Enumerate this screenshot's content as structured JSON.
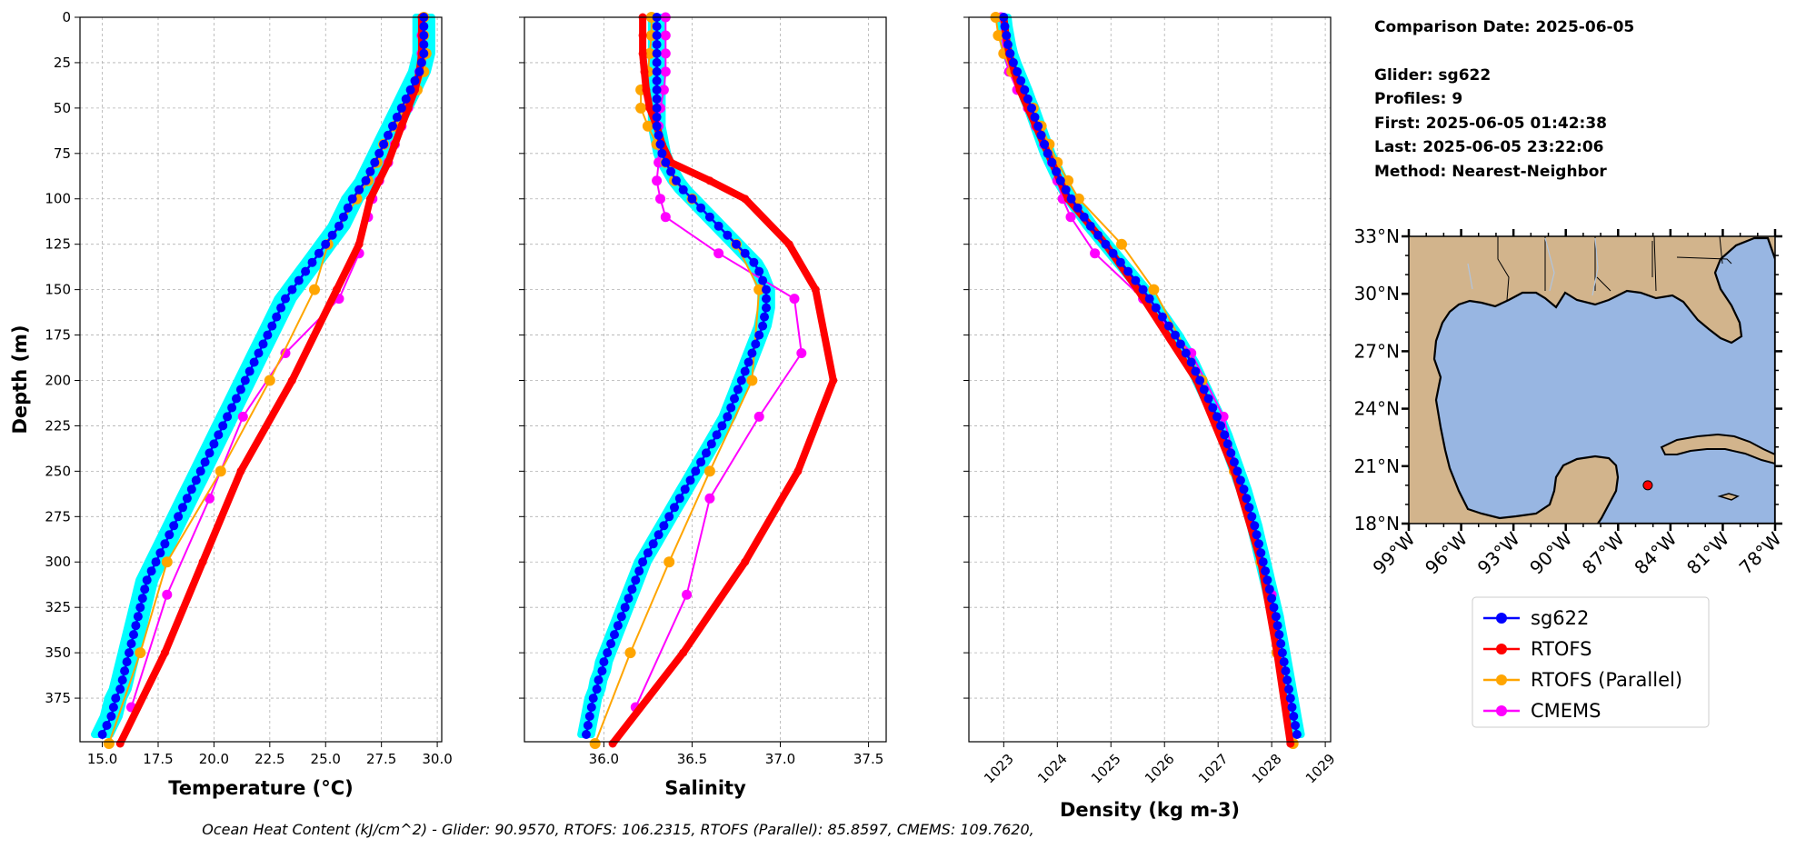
{
  "info": {
    "title": "Comparison Date: 2025-06-05",
    "glider": "Glider: sg622",
    "profiles": "Profiles: 9",
    "first": "First: 2025-06-05 01:42:38",
    "last": "Last: 2025-06-05 23:22:06",
    "method": "Method: Nearest-Neighbor"
  },
  "footer": "Ocean Heat Content (kJ/cm^2) - Glider: 90.9570,  RTOFS: 106.2315,  RTOFS (Parallel): 85.8597,  CMEMS: 109.7620,",
  "colors": {
    "glider": "#0000ff",
    "glider_spread": "#00ffff",
    "rtofs": "#ff0000",
    "rtofs_parallel": "#ffa500",
    "cmems": "#ff00ff",
    "land": "#d2b48c",
    "ocean": "#98b6e2"
  },
  "legend": [
    "sg622",
    "RTOFS",
    "RTOFS (Parallel)",
    "CMEMS"
  ],
  "chart_data": [
    {
      "type": "line",
      "xlabel": "Temperature (°C)",
      "ylabel": "Depth (m)",
      "xlim": [
        14,
        30.2
      ],
      "ylim": [
        399,
        0
      ],
      "xticks": [
        15.0,
        17.5,
        20.0,
        22.5,
        25.0,
        27.5,
        30.0
      ],
      "xtick_labels": [
        "15.0",
        "17.5",
        "20.0",
        "22.5",
        "25.0",
        "27.5",
        "30.0"
      ],
      "yticks": [
        0,
        25,
        50,
        75,
        100,
        125,
        150,
        175,
        200,
        225,
        250,
        275,
        300,
        325,
        350,
        375
      ],
      "yticks_labels": [
        "0",
        "25",
        "50",
        "75",
        "100",
        "125",
        "150",
        "175",
        "200",
        "225",
        "250",
        "275",
        "300",
        "325",
        "350",
        "375"
      ],
      "grid": true,
      "series": [
        {
          "name": "sg622",
          "depth": [
            0,
            5,
            10,
            15,
            20,
            25,
            30,
            35,
            40,
            45,
            50,
            55,
            60,
            65,
            70,
            75,
            80,
            85,
            90,
            95,
            100,
            105,
            110,
            115,
            120,
            125,
            130,
            135,
            140,
            145,
            150,
            155,
            160,
            165,
            170,
            175,
            180,
            185,
            190,
            195,
            200,
            205,
            210,
            215,
            220,
            225,
            230,
            235,
            240,
            245,
            250,
            255,
            260,
            265,
            270,
            275,
            280,
            285,
            290,
            295,
            300,
            305,
            310,
            315,
            320,
            325,
            330,
            335,
            340,
            345,
            350,
            355,
            360,
            365,
            370,
            375,
            380,
            385,
            390,
            395
          ],
          "values": [
            29.4,
            29.4,
            29.4,
            29.4,
            29.4,
            29.3,
            29.2,
            29.0,
            28.8,
            28.6,
            28.4,
            28.2,
            28.0,
            27.8,
            27.6,
            27.4,
            27.2,
            27.0,
            26.8,
            26.5,
            26.2,
            26.0,
            25.8,
            25.6,
            25.3,
            25.0,
            24.7,
            24.4,
            24.1,
            23.8,
            23.5,
            23.2,
            23.0,
            22.8,
            22.6,
            22.4,
            22.2,
            22.0,
            21.8,
            21.6,
            21.4,
            21.2,
            21.0,
            20.8,
            20.6,
            20.4,
            20.2,
            20.0,
            19.8,
            19.6,
            19.4,
            19.2,
            19.0,
            18.8,
            18.6,
            18.4,
            18.2,
            18.0,
            17.8,
            17.6,
            17.4,
            17.2,
            17.0,
            16.9,
            16.8,
            16.7,
            16.6,
            16.5,
            16.4,
            16.3,
            16.2,
            16.1,
            16.0,
            15.9,
            15.8,
            15.6,
            15.5,
            15.4,
            15.2,
            15.0
          ]
        },
        {
          "name": "RTOFS",
          "depth": [
            0,
            10,
            20,
            30,
            40,
            50,
            60,
            70,
            80,
            90,
            100,
            125,
            150,
            200,
            250,
            300,
            350,
            400
          ],
          "values": [
            29.3,
            29.3,
            29.3,
            29.2,
            29.0,
            28.7,
            28.4,
            28.1,
            27.8,
            27.4,
            27.0,
            26.5,
            25.5,
            23.5,
            21.2,
            19.5,
            17.8,
            15.8
          ]
        },
        {
          "name": "RTOFS (Parallel)",
          "depth": [
            0,
            10,
            20,
            30,
            40,
            50,
            60,
            70,
            80,
            90,
            100,
            125,
            150,
            200,
            250,
            300,
            350,
            400
          ],
          "values": [
            29.4,
            29.4,
            29.5,
            29.4,
            29.1,
            28.5,
            28.1,
            27.6,
            27.3,
            26.9,
            26.4,
            25.1,
            24.5,
            22.5,
            20.3,
            17.9,
            16.7,
            15.3
          ]
        },
        {
          "name": "CMEMS",
          "depth": [
            0,
            10,
            20,
            30,
            40,
            50,
            60,
            70,
            80,
            90,
            100,
            110,
            130,
            155,
            185,
            220,
            265,
            318,
            380
          ],
          "values": [
            29.4,
            29.3,
            29.3,
            29.2,
            29.0,
            28.7,
            28.4,
            28.1,
            27.8,
            27.4,
            27.1,
            26.9,
            26.5,
            25.6,
            23.2,
            21.3,
            19.8,
            17.9,
            16.3
          ]
        }
      ]
    },
    {
      "type": "line",
      "xlabel": "Salinity",
      "xlim": [
        35.55,
        37.6
      ],
      "ylim": [
        399,
        0
      ],
      "xticks": [
        36.0,
        36.5,
        37.0,
        37.5
      ],
      "xtick_labels": [
        "36.0",
        "36.5",
        "37.0",
        "37.5"
      ],
      "grid": true,
      "series": [
        {
          "name": "sg622",
          "depth": [
            0,
            5,
            10,
            15,
            20,
            25,
            30,
            35,
            40,
            45,
            50,
            55,
            60,
            65,
            70,
            75,
            80,
            85,
            90,
            95,
            100,
            105,
            110,
            115,
            120,
            125,
            130,
            135,
            140,
            145,
            150,
            155,
            160,
            165,
            170,
            175,
            180,
            185,
            190,
            195,
            200,
            205,
            210,
            215,
            220,
            225,
            230,
            235,
            240,
            245,
            250,
            255,
            260,
            265,
            270,
            275,
            280,
            285,
            290,
            295,
            300,
            305,
            310,
            315,
            320,
            325,
            330,
            335,
            340,
            345,
            350,
            355,
            360,
            365,
            370,
            375,
            380,
            385,
            390,
            395
          ],
          "values": [
            36.3,
            36.3,
            36.3,
            36.3,
            36.3,
            36.3,
            36.3,
            36.3,
            36.3,
            36.3,
            36.3,
            36.3,
            36.3,
            36.31,
            36.32,
            36.33,
            36.35,
            36.38,
            36.41,
            36.45,
            36.5,
            36.55,
            36.6,
            36.65,
            36.7,
            36.75,
            36.8,
            36.85,
            36.88,
            36.9,
            36.92,
            36.92,
            36.92,
            36.91,
            36.9,
            36.88,
            36.86,
            36.84,
            36.82,
            36.8,
            36.78,
            36.76,
            36.74,
            36.72,
            36.7,
            36.67,
            36.64,
            36.61,
            36.58,
            36.55,
            36.52,
            36.49,
            36.46,
            36.43,
            36.4,
            36.37,
            36.34,
            36.31,
            36.28,
            36.25,
            36.22,
            36.2,
            36.18,
            36.16,
            36.14,
            36.12,
            36.1,
            36.08,
            36.06,
            36.04,
            36.02,
            36.0,
            35.99,
            35.97,
            35.96,
            35.94,
            35.93,
            35.92,
            35.91,
            35.9
          ]
        },
        {
          "name": "RTOFS",
          "depth": [
            0,
            10,
            20,
            30,
            40,
            50,
            60,
            70,
            80,
            90,
            100,
            125,
            150,
            200,
            250,
            300,
            350,
            400
          ],
          "values": [
            36.22,
            36.22,
            36.22,
            36.23,
            36.24,
            36.26,
            36.3,
            36.33,
            36.38,
            36.6,
            36.8,
            37.05,
            37.2,
            37.3,
            37.1,
            36.8,
            36.45,
            36.05
          ]
        },
        {
          "name": "RTOFS (Parallel)",
          "depth": [
            0,
            10,
            20,
            30,
            40,
            50,
            60,
            70,
            80,
            90,
            100,
            125,
            150,
            200,
            250,
            300,
            350,
            400
          ],
          "values": [
            36.27,
            36.27,
            36.26,
            36.25,
            36.21,
            36.21,
            36.25,
            36.3,
            36.35,
            36.4,
            36.5,
            36.75,
            36.88,
            36.84,
            36.6,
            36.37,
            36.15,
            35.95
          ]
        },
        {
          "name": "CMEMS",
          "depth": [
            0,
            10,
            20,
            30,
            40,
            50,
            60,
            70,
            80,
            90,
            100,
            110,
            130,
            155,
            185,
            220,
            265,
            318,
            380
          ],
          "values": [
            36.35,
            36.35,
            36.35,
            36.35,
            36.34,
            36.32,
            36.31,
            36.31,
            36.31,
            36.3,
            36.32,
            36.35,
            36.65,
            37.08,
            37.12,
            36.88,
            36.6,
            36.47,
            36.18
          ]
        }
      ]
    },
    {
      "type": "line",
      "xlabel": "Density (kg m-3)",
      "xlim": [
        1022.35,
        1029.1
      ],
      "ylim": [
        399,
        0
      ],
      "xticks": [
        1023,
        1024,
        1025,
        1026,
        1027,
        1028,
        1029
      ],
      "xtick_labels": [
        "1023",
        "1024",
        "1025",
        "1026",
        "1027",
        "1028",
        "1029"
      ],
      "grid": true,
      "series": [
        {
          "name": "sg622",
          "depth": [
            0,
            5,
            10,
            15,
            20,
            25,
            30,
            35,
            40,
            45,
            50,
            55,
            60,
            65,
            70,
            75,
            80,
            85,
            90,
            95,
            100,
            105,
            110,
            115,
            120,
            125,
            130,
            135,
            140,
            145,
            150,
            155,
            160,
            165,
            170,
            175,
            180,
            185,
            190,
            195,
            200,
            205,
            210,
            215,
            220,
            225,
            230,
            235,
            240,
            245,
            250,
            255,
            260,
            265,
            270,
            275,
            280,
            285,
            290,
            295,
            300,
            305,
            310,
            315,
            320,
            325,
            330,
            335,
            340,
            345,
            350,
            355,
            360,
            365,
            370,
            375,
            380,
            385,
            390,
            395
          ],
          "values": [
            1023.0,
            1023.02,
            1023.05,
            1023.08,
            1023.12,
            1023.18,
            1023.25,
            1023.32,
            1023.39,
            1023.45,
            1023.52,
            1023.58,
            1023.64,
            1023.7,
            1023.76,
            1023.82,
            1023.9,
            1023.98,
            1024.06,
            1024.16,
            1024.26,
            1024.38,
            1024.5,
            1024.62,
            1024.76,
            1024.9,
            1025.04,
            1025.18,
            1025.32,
            1025.46,
            1025.6,
            1025.72,
            1025.84,
            1025.96,
            1026.08,
            1026.2,
            1026.3,
            1026.4,
            1026.5,
            1026.58,
            1026.66,
            1026.74,
            1026.82,
            1026.9,
            1026.98,
            1027.05,
            1027.12,
            1027.18,
            1027.24,
            1027.3,
            1027.36,
            1027.42,
            1027.48,
            1027.53,
            1027.58,
            1027.63,
            1027.68,
            1027.72,
            1027.76,
            1027.8,
            1027.84,
            1027.88,
            1027.92,
            1027.96,
            1028.0,
            1028.04,
            1028.08,
            1028.11,
            1028.14,
            1028.17,
            1028.2,
            1028.23,
            1028.26,
            1028.29,
            1028.32,
            1028.35,
            1028.38,
            1028.41,
            1028.44,
            1028.47
          ]
        },
        {
          "name": "RTOFS",
          "depth": [
            0,
            10,
            20,
            30,
            40,
            50,
            60,
            70,
            80,
            90,
            100,
            125,
            150,
            200,
            250,
            300,
            350,
            400
          ],
          "values": [
            1023.0,
            1023.04,
            1023.1,
            1023.2,
            1023.3,
            1023.45,
            1023.6,
            1023.75,
            1023.9,
            1024.05,
            1024.2,
            1024.9,
            1025.5,
            1026.6,
            1027.3,
            1027.8,
            1028.1,
            1028.35
          ]
        },
        {
          "name": "RTOFS (Parallel)",
          "depth": [
            0,
            10,
            20,
            30,
            40,
            50,
            60,
            70,
            80,
            90,
            100,
            125,
            150,
            200,
            250,
            300,
            350,
            400
          ],
          "values": [
            1022.85,
            1022.9,
            1023.0,
            1023.15,
            1023.35,
            1023.55,
            1023.7,
            1023.85,
            1024.0,
            1024.2,
            1024.4,
            1025.2,
            1025.8,
            1026.7,
            1027.3,
            1027.8,
            1028.1,
            1028.4
          ]
        },
        {
          "name": "CMEMS",
          "depth": [
            0,
            10,
            20,
            30,
            40,
            50,
            60,
            70,
            80,
            90,
            100,
            110,
            130,
            155,
            185,
            220,
            265,
            318,
            380
          ],
          "values": [
            1022.95,
            1022.97,
            1023.0,
            1023.1,
            1023.25,
            1023.45,
            1023.6,
            1023.75,
            1023.9,
            1024.0,
            1024.1,
            1024.25,
            1024.7,
            1025.6,
            1026.5,
            1027.1,
            1027.5,
            1028.0,
            1028.3
          ]
        }
      ]
    }
  ],
  "map": {
    "lat_labels": [
      "33°N",
      "30°N",
      "27°N",
      "24°N",
      "21°N",
      "18°N"
    ],
    "lon_labels": [
      "99°W",
      "96°W",
      "93°W",
      "90°W",
      "87°W",
      "84°W",
      "81°W",
      "78°W"
    ],
    "lon_range": [
      -99,
      -78
    ],
    "lat_range": [
      18,
      33
    ],
    "marker": {
      "lon": -85.3,
      "lat": 20.0
    }
  }
}
